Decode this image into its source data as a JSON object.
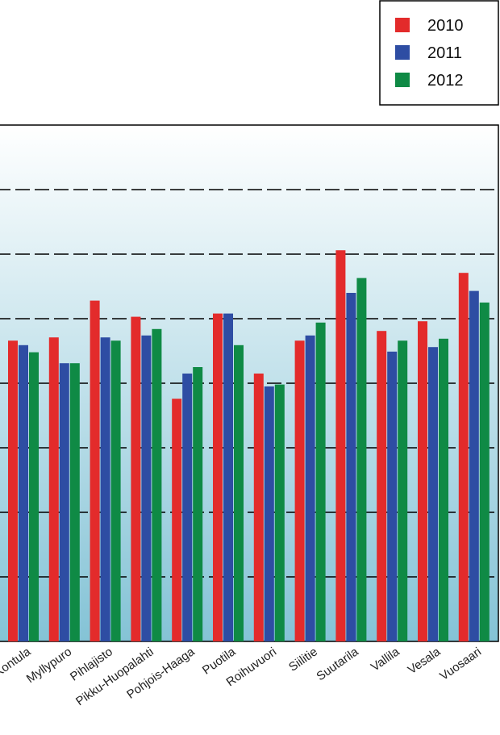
{
  "chart_data": {
    "type": "bar",
    "categories": [
      "Kontula",
      "Myllypuro",
      "Pihlajisto",
      "Pikku-Huopalahti",
      "Pohjois-Haaga",
      "Puotila",
      "Roihuvuori",
      "Siilitie",
      "Suutarila",
      "Vallila",
      "Vesala",
      "Vuosaari"
    ],
    "series": [
      {
        "name": "2010",
        "color": "#e32b2b",
        "values": [
          4.66,
          4.71,
          5.28,
          5.03,
          3.76,
          5.08,
          4.15,
          4.66,
          6.06,
          4.81,
          4.96,
          5.71
        ]
      },
      {
        "name": "2011",
        "color": "#2e4da3",
        "values": [
          4.59,
          4.31,
          4.71,
          4.74,
          4.15,
          5.08,
          3.95,
          4.74,
          5.4,
          4.49,
          4.56,
          5.43
        ]
      },
      {
        "name": "2012",
        "color": "#0f8a45",
        "values": [
          4.48,
          4.31,
          4.66,
          4.84,
          4.25,
          4.59,
          3.98,
          4.94,
          5.63,
          4.66,
          4.69,
          5.25
        ]
      }
    ],
    "ylim": [
      0,
      8
    ],
    "yticks": [
      1,
      2,
      3,
      4,
      5,
      6,
      7
    ],
    "grid": true,
    "legend": "top-right"
  }
}
